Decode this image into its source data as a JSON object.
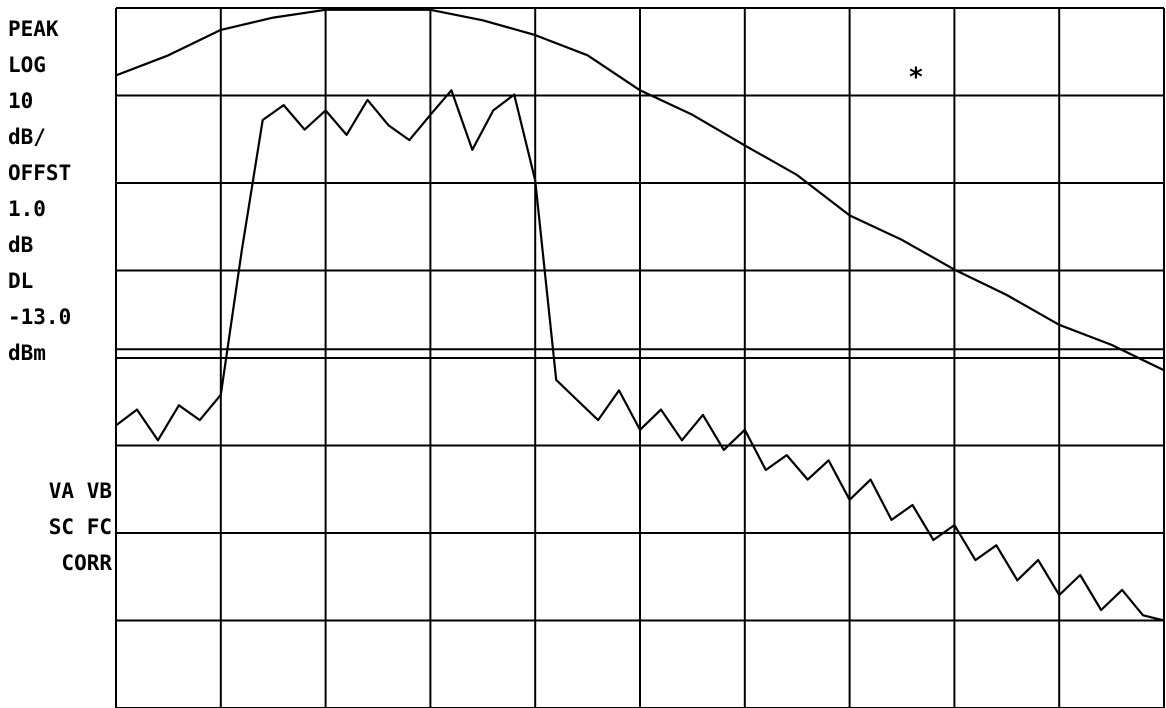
{
  "chart_data": {
    "type": "line",
    "labels": [
      "PEAK",
      "LOG",
      "10",
      "dB/",
      "OFFST",
      "1.0",
      "dB",
      "DL",
      "-13.0",
      "dBm"
    ],
    "status": [
      "VA VB",
      "SC FC",
      "CORR"
    ],
    "annotation": "*",
    "display_line": {
      "value": -13,
      "label": "-13.0"
    },
    "xlim": [
      0,
      10
    ],
    "ylim": [
      -54,
      26
    ],
    "series": [
      {
        "color": "#000000",
        "x": [
          0,
          0.5,
          1,
          1.5,
          2,
          2.5,
          3,
          3.5,
          4,
          4.5,
          5,
          5.5,
          6,
          6.5,
          7,
          7.5,
          8,
          8.5,
          9,
          9.5,
          10
        ],
        "values": [
          18.3,
          20.6,
          23.5,
          24.9,
          25.8,
          25.8,
          25.8,
          24.6,
          22.9,
          20.6,
          16.6,
          13.8,
          10.3,
          6.9,
          2.3,
          -0.5,
          -3.9,
          -6.8,
          -10.2,
          -12.5,
          -15.4
        ]
      },
      {
        "color": "#000000",
        "x": [
          0,
          0.2,
          0.4,
          0.6,
          0.8,
          1,
          1.2,
          1.4,
          1.6,
          1.8,
          2,
          2.2,
          2.4,
          2.6,
          2.8,
          3,
          3.2,
          3.4,
          3.6,
          3.8,
          4,
          4.2,
          4.4,
          4.6,
          4.8,
          5,
          5.2,
          5.4,
          5.6,
          5.8,
          6,
          6.2,
          6.4,
          6.6,
          6.8,
          7,
          7.2,
          7.4,
          7.6,
          7.8,
          8,
          8.2,
          8.4,
          8.6,
          8.8,
          9,
          9.2,
          9.4,
          9.6,
          9.8,
          10
        ],
        "values": [
          -21.7,
          -19.9,
          -23.4,
          -19.4,
          -21.1,
          -18.2,
          -1.7,
          13.2,
          14.9,
          12.1,
          14.3,
          11.5,
          15.5,
          12.6,
          10.9,
          13.8,
          16.6,
          9.8,
          14.3,
          16.1,
          6.3,
          -16.5,
          -18.8,
          -21.1,
          -17.7,
          -22.2,
          -19.9,
          -23.4,
          -20.5,
          -24.5,
          -22.2,
          -26.8,
          -25.1,
          -27.9,
          -25.7,
          -30.2,
          -27.9,
          -32.5,
          -30.8,
          -34.8,
          -33.1,
          -37.1,
          -35.4,
          -39.4,
          -37.1,
          -41.1,
          -38.8,
          -42.8,
          -40.5,
          -43.4,
          -44.0
        ]
      }
    ]
  }
}
